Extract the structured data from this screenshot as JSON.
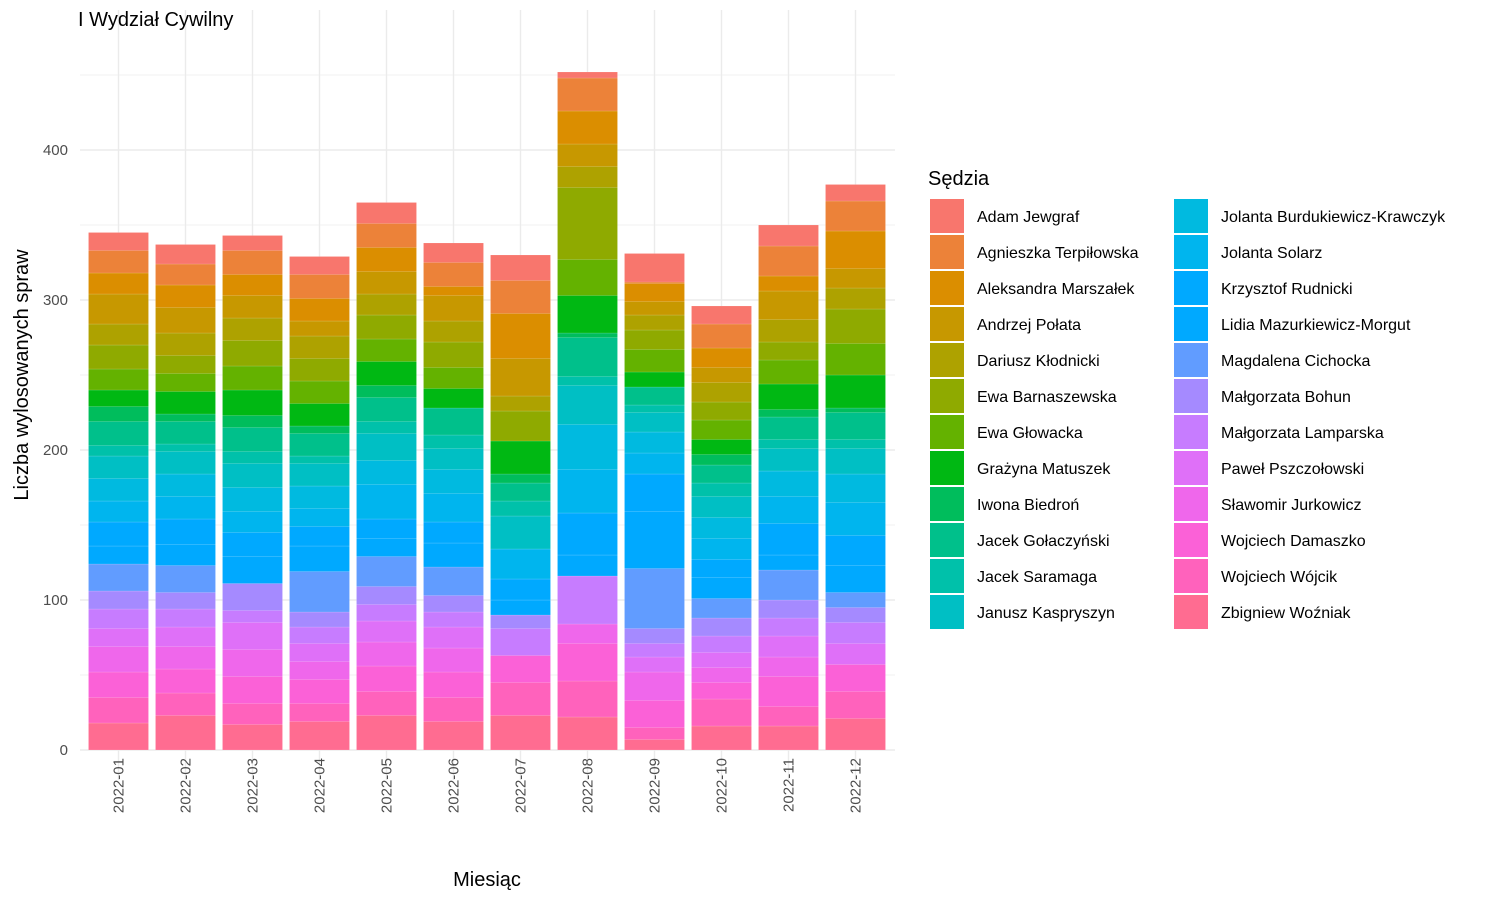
{
  "chart_data": {
    "type": "bar",
    "stacked": true,
    "title": "I Wydział Cywilny",
    "xlabel": "Miesiąc",
    "ylabel": "Liczba wylosowanych spraw",
    "ylim": [
      0,
      470
    ],
    "yticks": [
      0,
      100,
      200,
      300,
      400
    ],
    "grid": true,
    "legend_position": "right",
    "legend_title": "Sędzia",
    "categories": [
      "2022-01",
      "2022-02",
      "2022-03",
      "2022-04",
      "2022-05",
      "2022-06",
      "2022-07",
      "2022-08",
      "2022-09",
      "2022-10",
      "2022-11",
      "2022-12"
    ],
    "series": [
      {
        "name": "Adam Jewgraf",
        "color": "#F8766D",
        "values": [
          12,
          13,
          10,
          12,
          14,
          13,
          17,
          4,
          19,
          12,
          14,
          11
        ]
      },
      {
        "name": "Agnieszka Terpiłowska",
        "color": "#EC8239",
        "values": [
          15,
          14,
          16,
          16,
          16,
          16,
          22,
          22,
          1,
          16,
          20,
          20
        ]
      },
      {
        "name": "Aleksandra Marszałek",
        "color": "#DB8E00",
        "values": [
          14,
          15,
          14,
          15,
          16,
          6,
          30,
          22,
          12,
          13,
          10,
          25
        ]
      },
      {
        "name": "Andrzej Połata",
        "color": "#C79800",
        "values": [
          20,
          17,
          15,
          10,
          15,
          17,
          25,
          15,
          9,
          10,
          19,
          13
        ]
      },
      {
        "name": "Dariusz Kłodnicki",
        "color": "#AEA200",
        "values": [
          14,
          15,
          15,
          15,
          14,
          14,
          10,
          14,
          10,
          13,
          15,
          14
        ]
      },
      {
        "name": "Ewa Barnaszewska",
        "color": "#8FAA00",
        "values": [
          16,
          12,
          17,
          15,
          16,
          17,
          20,
          48,
          13,
          12,
          12,
          23
        ]
      },
      {
        "name": "Ewa Głowacka",
        "color": "#64B200",
        "values": [
          14,
          12,
          16,
          15,
          15,
          14,
          0,
          24,
          15,
          13,
          16,
          21
        ]
      },
      {
        "name": "Grażyna Matuszek",
        "color": "#00B813",
        "values": [
          11,
          15,
          17,
          15,
          16,
          13,
          22,
          25,
          10,
          10,
          17,
          22
        ]
      },
      {
        "name": "Iwona Biedroń",
        "color": "#00BD5C",
        "values": [
          10,
          5,
          8,
          5,
          8,
          0,
          6,
          3,
          0,
          7,
          5,
          3
        ]
      },
      {
        "name": "Jacek Gołaczyński",
        "color": "#00C08B",
        "values": [
          16,
          15,
          16,
          15,
          16,
          18,
          12,
          26,
          12,
          12,
          15,
          18
        ]
      },
      {
        "name": "Jacek Saramaga",
        "color": "#00C1AA",
        "values": [
          7,
          5,
          8,
          5,
          8,
          9,
          10,
          6,
          5,
          9,
          6,
          6
        ]
      },
      {
        "name": "Janusz Kaspryszyn",
        "color": "#00BFC4",
        "values": [
          15,
          15,
          16,
          15,
          18,
          14,
          22,
          26,
          13,
          14,
          15,
          17
        ]
      },
      {
        "name": "Jolanta Burdukiewicz-Krawczyk",
        "color": "#00BAE0",
        "values": [
          15,
          15,
          16,
          15,
          16,
          16,
          0,
          30,
          14,
          14,
          17,
          19
        ]
      },
      {
        "name": "Jolanta Solarz",
        "color": "#00B5EE",
        "values": [
          14,
          15,
          14,
          12,
          23,
          19,
          20,
          29,
          14,
          14,
          18,
          22
        ]
      },
      {
        "name": "Krzysztof Rudnicki",
        "color": "#00A9FF",
        "values": [
          16,
          17,
          16,
          13,
          13,
          14,
          14,
          28,
          25,
          12,
          21,
          20
        ]
      },
      {
        "name": "Lidia Mazurkiewicz-Morgut",
        "color": "#00A9FF",
        "values": [
          12,
          14,
          18,
          17,
          12,
          16,
          10,
          14,
          38,
          14,
          10,
          18
        ]
      },
      {
        "name": "Magdalena Cichocka",
        "color": "#619CFF",
        "values": [
          18,
          18,
          0,
          27,
          20,
          19,
          0,
          0,
          40,
          13,
          20,
          10
        ]
      },
      {
        "name": "Małgorzata Bohun",
        "color": "#A58AFF",
        "values": [
          12,
          11,
          18,
          10,
          12,
          11,
          9,
          0,
          10,
          12,
          12,
          10
        ]
      },
      {
        "name": "Małgorzata Lamparska",
        "color": "#C77CFF",
        "values": [
          13,
          12,
          8,
          11,
          11,
          10,
          18,
          32,
          9,
          11,
          12,
          14
        ]
      },
      {
        "name": "Paweł Pszczołowski",
        "color": "#DF70F8",
        "values": [
          12,
          13,
          18,
          12,
          14,
          14,
          0,
          0,
          10,
          10,
          14,
          14
        ]
      },
      {
        "name": "Sławomir Jurkowicz",
        "color": "#EF67EB",
        "values": [
          17,
          15,
          18,
          12,
          16,
          16,
          0,
          13,
          19,
          10,
          13,
          0
        ]
      },
      {
        "name": "Wojciech Damaszko",
        "color": "#FB61D7",
        "values": [
          17,
          16,
          18,
          16,
          17,
          17,
          18,
          25,
          18,
          11,
          20,
          18
        ]
      },
      {
        "name": "Wojciech Wójcik",
        "color": "#FF62BC",
        "values": [
          17,
          15,
          14,
          12,
          16,
          16,
          22,
          24,
          8,
          18,
          13,
          18
        ]
      },
      {
        "name": "Zbigniew Woźniak",
        "color": "#FF6C91",
        "values": [
          18,
          23,
          17,
          19,
          23,
          19,
          23,
          22,
          7,
          16,
          16,
          21
        ]
      }
    ]
  }
}
